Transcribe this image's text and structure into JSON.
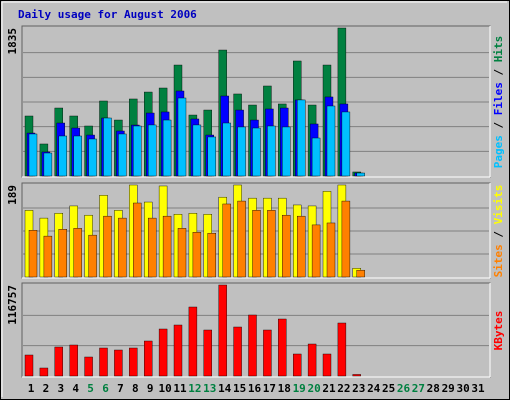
{
  "chart_data": [
    {
      "type": "bar",
      "title": "Daily usage for August 2006",
      "legend_separator": " / ",
      "ylim": [
        0,
        1835
      ],
      "yticks": [
        1835
      ],
      "grid": true,
      "series": [
        {
          "name": "Pages",
          "color": "#00c0ff",
          "values": [
            521,
            285,
            496,
            496,
            459,
            719,
            521,
            620,
            633,
            694,
            967,
            633,
            484,
            657,
            608,
            595,
            620,
            608,
            943,
            471,
            868,
            794,
            37,
            0,
            0,
            0,
            0,
            0,
            0,
            0,
            0
          ]
        },
        {
          "name": "Files",
          "color": "#0000ff",
          "values": [
            533,
            298,
            657,
            595,
            508,
            719,
            558,
            632,
            781,
            794,
            1054,
            707,
            508,
            992,
            818,
            694,
            831,
            843,
            943,
            645,
            980,
            893,
            37,
            0,
            0,
            0,
            0,
            0,
            0,
            0,
            0
          ]
        },
        {
          "name": "Hits",
          "color": "#008040",
          "values": [
            744,
            397,
            843,
            744,
            620,
            930,
            694,
            955,
            1041,
            1091,
            1376,
            756,
            818,
            1562,
            1017,
            880,
            1116,
            893,
            1426,
            880,
            1376,
            1835,
            50,
            0,
            0,
            0,
            0,
            0,
            0,
            0,
            0
          ]
        }
      ]
    },
    {
      "type": "bar",
      "ylim": [
        0,
        189
      ],
      "yticks": [
        189
      ],
      "grid": true,
      "series": [
        {
          "name": "Sites",
          "color": "#ff8000",
          "values": [
            96,
            84,
            98,
            100,
            86,
            125,
            121,
            152,
            121,
            125,
            100,
            92,
            90,
            150,
            156,
            137,
            137,
            127,
            125,
            107,
            111,
            156,
            14,
            0,
            0,
            0,
            0,
            0,
            0,
            0,
            0
          ]
        },
        {
          "name": "Visits",
          "color": "#ffff00",
          "values": [
            137,
            121,
            131,
            146,
            127,
            168,
            137,
            189,
            154,
            187,
            129,
            131,
            129,
            164,
            189,
            162,
            162,
            162,
            148,
            146,
            176,
            189,
            18,
            0,
            0,
            0,
            0,
            0,
            0,
            0,
            0
          ]
        }
      ]
    },
    {
      "type": "bar",
      "ylim": [
        0,
        116757
      ],
      "yticks": [
        116757
      ],
      "grid": true,
      "categories": [
        "1",
        "2",
        "3",
        "4",
        "5",
        "6",
        "7",
        "8",
        "9",
        "10",
        "11",
        "12",
        "13",
        "14",
        "15",
        "16",
        "17",
        "18",
        "19",
        "20",
        "21",
        "22",
        "23",
        "24",
        "25",
        "26",
        "27",
        "28",
        "29",
        "30",
        "31"
      ],
      "category_colors": [
        "#000000",
        "#000000",
        "#000000",
        "#000000",
        "#008040",
        "#008040",
        "#000000",
        "#000000",
        "#000000",
        "#000000",
        "#000000",
        "#008040",
        "#008040",
        "#000000",
        "#000000",
        "#000000",
        "#000000",
        "#000000",
        "#008040",
        "#008040",
        "#000000",
        "#000000",
        "#000000",
        "#000000",
        "#000000",
        "#008040",
        "#008040",
        "#000000",
        "#000000",
        "#000000",
        "#000000"
      ],
      "series": [
        {
          "name": "KBytes",
          "color": "#ff0000",
          "values": [
            26943,
            10264,
            37207,
            39773,
            24377,
            35924,
            33358,
            35924,
            44905,
            60301,
            65433,
            88527,
            59018,
            116757,
            62867,
            78263,
            59018,
            73131,
            28226,
            41056,
            28226,
            67999,
            2000,
            0,
            0,
            0,
            0,
            0,
            0,
            0,
            0
          ]
        }
      ]
    }
  ]
}
